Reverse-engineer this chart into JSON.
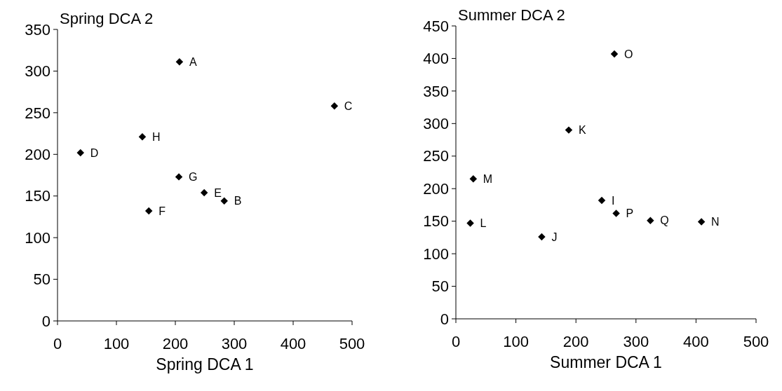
{
  "chart_data": [
    {
      "type": "scatter",
      "xlabel": "Spring DCA 1",
      "ylabel": "Spring DCA 2",
      "xlim": [
        0,
        500
      ],
      "ylim": [
        0,
        350
      ],
      "xticks": [
        0,
        100,
        200,
        300,
        400,
        500
      ],
      "yticks": [
        0,
        50,
        100,
        150,
        200,
        250,
        300,
        350
      ],
      "marker": "diamond",
      "grid": false,
      "series": [
        {
          "color": "#000000",
          "x": [
            207,
            283,
            470,
            39,
            249,
            155,
            206,
            144
          ],
          "values": [
            311,
            144,
            258,
            202,
            154,
            132,
            173,
            221
          ]
        }
      ],
      "annotations": [
        {
          "text": "A",
          "x": 207,
          "y": 311
        },
        {
          "text": "B",
          "x": 283,
          "y": 144
        },
        {
          "text": "C",
          "x": 470,
          "y": 258
        },
        {
          "text": "D",
          "x": 39,
          "y": 202
        },
        {
          "text": "E",
          "x": 249,
          "y": 154
        },
        {
          "text": "F",
          "x": 155,
          "y": 132
        },
        {
          "text": "G",
          "x": 206,
          "y": 173
        },
        {
          "text": "H",
          "x": 144,
          "y": 221
        }
      ]
    },
    {
      "type": "scatter",
      "xlabel": "Summer DCA 1",
      "ylabel": "Summer DCA 2",
      "xlim": [
        0,
        500
      ],
      "ylim": [
        0,
        450
      ],
      "xticks": [
        0,
        100,
        200,
        300,
        400,
        500
      ],
      "yticks": [
        0,
        50,
        100,
        150,
        200,
        250,
        300,
        350,
        400,
        450
      ],
      "marker": "diamond",
      "grid": false,
      "series": [
        {
          "color": "#000000",
          "x": [
            243,
            143,
            188,
            24,
            29,
            409,
            264,
            267,
            324
          ],
          "values": [
            182,
            126,
            290,
            147,
            215,
            149,
            407,
            162,
            151
          ]
        }
      ],
      "annotations": [
        {
          "text": "I",
          "x": 243,
          "y": 182
        },
        {
          "text": "J",
          "x": 143,
          "y": 126
        },
        {
          "text": "K",
          "x": 188,
          "y": 290
        },
        {
          "text": "L",
          "x": 24,
          "y": 147
        },
        {
          "text": "M",
          "x": 29,
          "y": 215
        },
        {
          "text": "N",
          "x": 409,
          "y": 149
        },
        {
          "text": "O",
          "x": 264,
          "y": 407
        },
        {
          "text": "P",
          "x": 267,
          "y": 162
        },
        {
          "text": "Q",
          "x": 324,
          "y": 151
        }
      ]
    }
  ]
}
